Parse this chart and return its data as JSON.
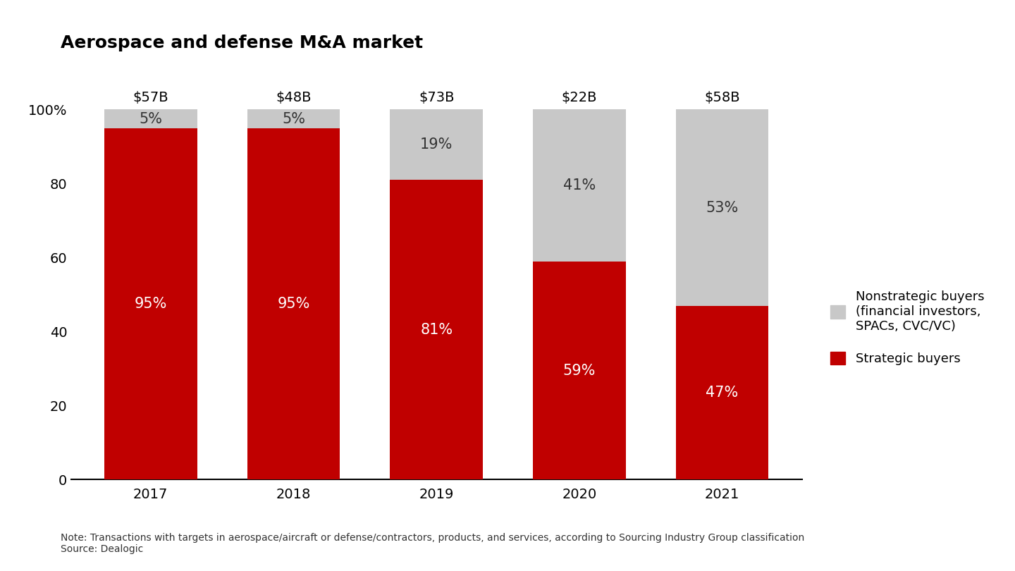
{
  "title": "Aerospace and defense M&A market",
  "years": [
    "2017",
    "2018",
    "2019",
    "2020",
    "2021"
  ],
  "totals": [
    "$57B",
    "$48B",
    "$73B",
    "$22B",
    "$58B"
  ],
  "strategic_pct": [
    95,
    95,
    81,
    59,
    47
  ],
  "nonstrategic_pct": [
    5,
    5,
    19,
    41,
    53
  ],
  "strategic_color": "#C00000",
  "nonstrategic_color": "#C8C8C8",
  "bar_width": 0.65,
  "ylim_max": 108,
  "yticks": [
    0,
    20,
    40,
    60,
    80,
    100
  ],
  "ytick_labels": [
    "0",
    "20",
    "40",
    "60",
    "80",
    "100%"
  ],
  "background_color": "#FFFFFF",
  "title_fontsize": 18,
  "label_fontsize": 15,
  "tick_fontsize": 14,
  "total_fontsize": 14,
  "note_text": "Note: Transactions with targets in aerospace/aircraft or defense/contractors, products, and services, according to Sourcing Industry Group classification",
  "source_text": "Source: Dealogic",
  "legend_nonstrategic": "Nonstrategic buyers\n(financial investors,\nSPACs, CVC/VC)",
  "legend_strategic": "Strategic buyers",
  "note_fontsize": 10
}
